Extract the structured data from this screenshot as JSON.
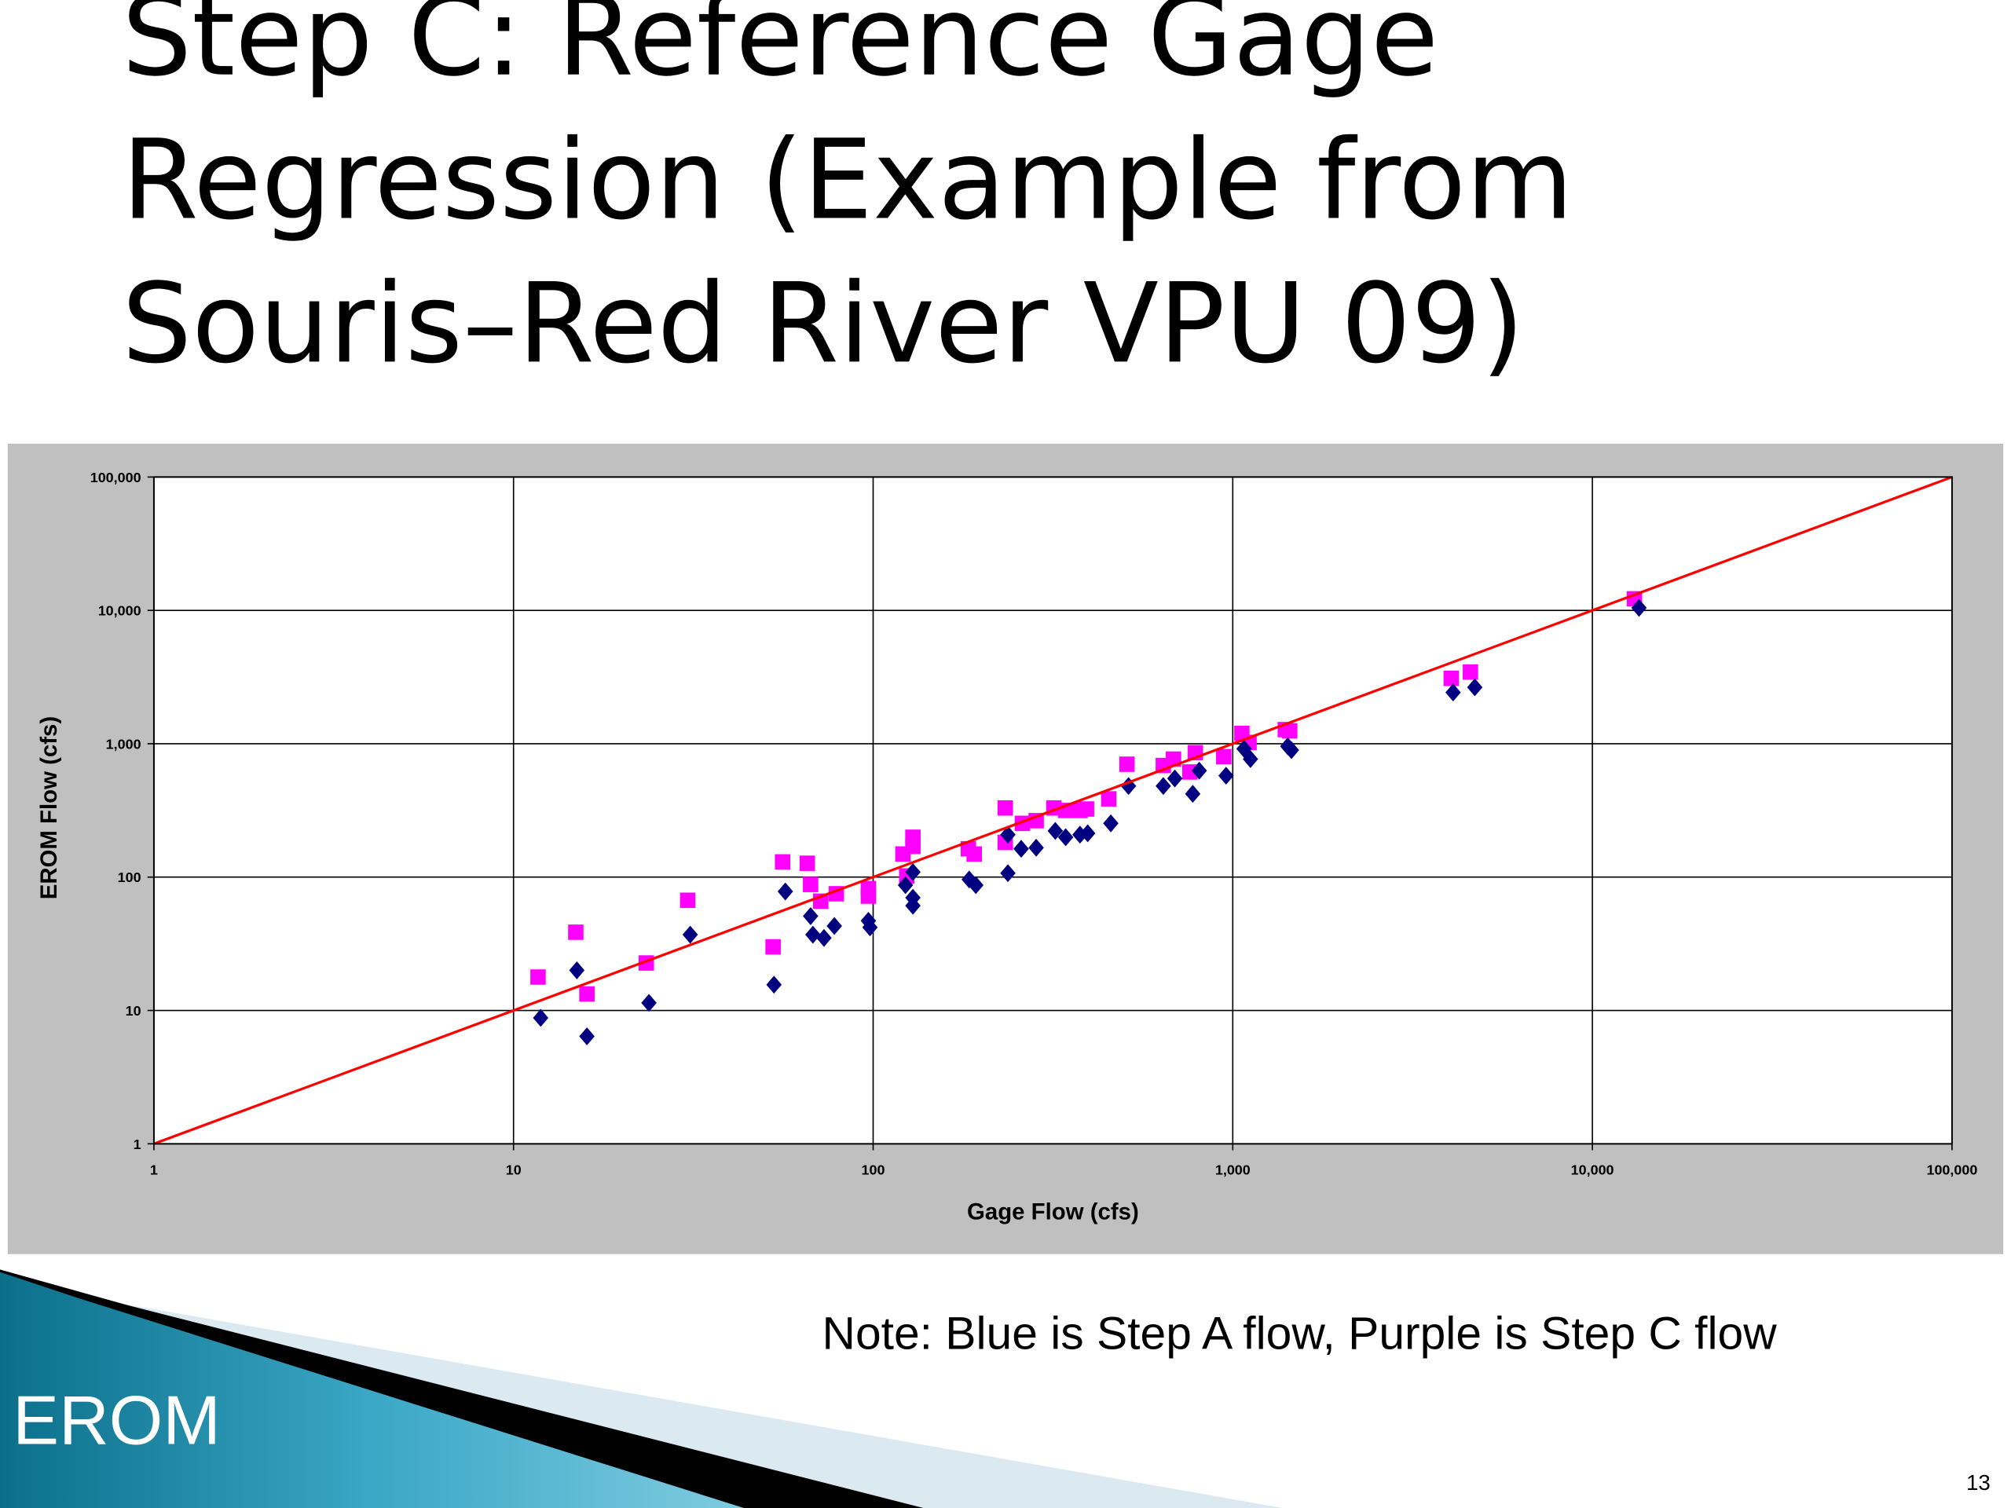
{
  "slide": {
    "title_lines": [
      "Step C: Reference Gage",
      "Regression (Example from",
      "Souris–Red River VPU 09)"
    ],
    "note": "Note: Blue is Step A flow, Purple is Step C flow",
    "footer": "EROM",
    "page_number": "13"
  },
  "chart_data": {
    "type": "scatter",
    "xscale": "log",
    "yscale": "log",
    "grid": true,
    "x_label": "Gage Flow (cfs)",
    "y_label": "EROM Flow (cfs)",
    "xlim": [
      1,
      100000
    ],
    "ylim": [
      1,
      100000
    ],
    "xticks": [
      1,
      10,
      100,
      {
        "value": 1000,
        "label": "1,000"
      },
      {
        "value": 10000,
        "label": "10,000"
      },
      {
        "value": 100000,
        "label": "100,000"
      }
    ],
    "yticks": [
      1,
      10,
      100,
      {
        "value": 1000,
        "label": "1,000"
      },
      {
        "value": 10000,
        "label": "10,000"
      },
      {
        "value": 100000,
        "label": "100,000"
      }
    ],
    "series": [
      {
        "color": "#ff00ff",
        "marker": "square",
        "x": [
          11.7,
          14.9,
          16,
          23.4,
          30.5,
          52.7,
          56,
          65.6,
          67,
          71.5,
          79,
          97,
          97,
          121,
          129,
          129,
          124,
          184,
          191,
          233,
          233,
          260,
          284,
          318,
          343,
          376,
          392,
          452,
          508,
          641,
          684,
          760,
          787,
          944,
          1060,
          1110,
          1400,
          1440,
          4050,
          4580,
          13090
        ],
        "values": [
          17.8,
          38.6,
          13.3,
          22.7,
          67,
          30,
          130,
          127,
          88,
          66,
          75,
          82,
          72,
          149,
          199,
          170,
          102,
          163,
          149,
          182,
          330,
          253,
          265,
          330,
          316,
          316,
          324,
          386,
          702,
          687,
          767,
          614,
          857,
          801,
          1195,
          1023,
          1276,
          1248,
          3093,
          3450,
          12210
        ]
      },
      {
        "color": "#000080",
        "marker": "diamond",
        "x": [
          11.9,
          15,
          16,
          23.8,
          31,
          53,
          57,
          67,
          68,
          73,
          78,
          97,
          98,
          123,
          129,
          129,
          129,
          185,
          193,
          237,
          237,
          258,
          284,
          321,
          343,
          376,
          395,
          458,
          513,
          641,
          690,
          774,
          807,
          958,
          1075,
          1120,
          1422,
          1456,
          4100,
          4710,
          13480
        ],
        "values": [
          8.8,
          20,
          6.4,
          11.4,
          37,
          15.6,
          78,
          51,
          37,
          35,
          43,
          47,
          42,
          87,
          70,
          61,
          109,
          96,
          87,
          107,
          208,
          163,
          166,
          222,
          199,
          208,
          213,
          253,
          482,
          482,
          549,
          421,
          628,
          576,
          916,
          767,
          957,
          896,
          2425,
          2650,
          10450
        ]
      },
      {
        "type": "line",
        "color": "#ff0000",
        "x": [
          1,
          100000
        ],
        "values": [
          1,
          100000
        ]
      }
    ]
  }
}
